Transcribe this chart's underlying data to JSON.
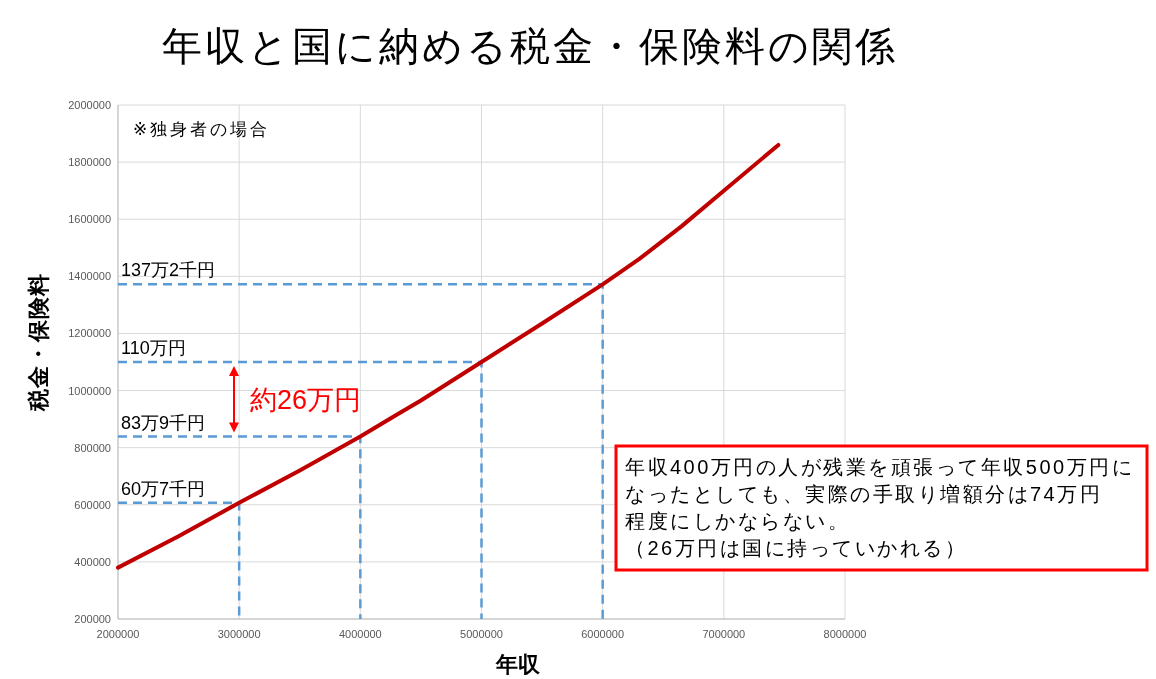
{
  "chart_data": {
    "type": "line",
    "title": "年収と国に納める税金・保険料の関係",
    "xlabel": "年収",
    "ylabel": "税金・保険料",
    "xlim": [
      2000000,
      8000000
    ],
    "xticks": [
      2000000,
      3000000,
      4000000,
      5000000,
      6000000,
      7000000,
      8000000
    ],
    "ylim": [
      200000,
      2000000
    ],
    "yticks": [
      200000,
      400000,
      600000,
      800000,
      1000000,
      1200000,
      1400000,
      1600000,
      1800000,
      2000000
    ],
    "grid": true,
    "series": [
      {
        "color": "#5b9bd5",
        "line_style": "dashed",
        "x": [
          2000000,
          6000000,
          6000000
        ],
        "values": [
          1372000,
          1372000,
          200000
        ]
      },
      {
        "color": "#5b9bd5",
        "line_style": "dashed",
        "x": [
          2000000,
          5000000,
          5000000
        ],
        "values": [
          1100000,
          1100000,
          200000
        ]
      },
      {
        "color": "#5b9bd5",
        "line_style": "dashed",
        "x": [
          2000000,
          4000000,
          4000000
        ],
        "values": [
          839000,
          839000,
          200000
        ]
      },
      {
        "color": "#5b9bd5",
        "line_style": "dashed",
        "x": [
          2000000,
          3000000,
          3000000
        ],
        "values": [
          607000,
          607000,
          200000
        ]
      },
      {
        "color": "#c00000",
        "line_style": "solid",
        "x": [
          2000000,
          2500000,
          3000000,
          3500000,
          4000000,
          4300000,
          4500000,
          5000000,
          5500000,
          6000000,
          6300000,
          6650000,
          7000000,
          7450000
        ],
        "values": [
          380000,
          490000,
          607000,
          720000,
          839000,
          915000,
          965000,
          1100000,
          1235000,
          1372000,
          1460000,
          1575000,
          1700000,
          1860000
        ]
      }
    ],
    "annotations": [
      "※独身者の場合",
      {
        "text": "137万2千円",
        "y": 1372000
      },
      {
        "text": "110万円",
        "y": 1100000
      },
      {
        "text": "83万9千円",
        "y": 839000
      },
      {
        "text": "60万7千円",
        "y": 607000
      },
      "約26万円",
      "年収400万円の人が残業を頑張って年収500万円になったとしても、実際の手取り増額分は74万円程度にしかならない。",
      "（26万円は国に持っていかれる）"
    ]
  }
}
